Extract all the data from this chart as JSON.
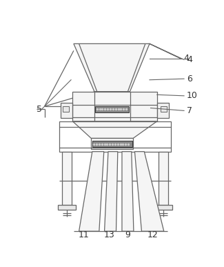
{
  "bg_color": "#ffffff",
  "line_color": "#666666",
  "dark_color": "#333333",
  "label_color": "#333333",
  "label_fontsize": 9,
  "lw": 0.9
}
